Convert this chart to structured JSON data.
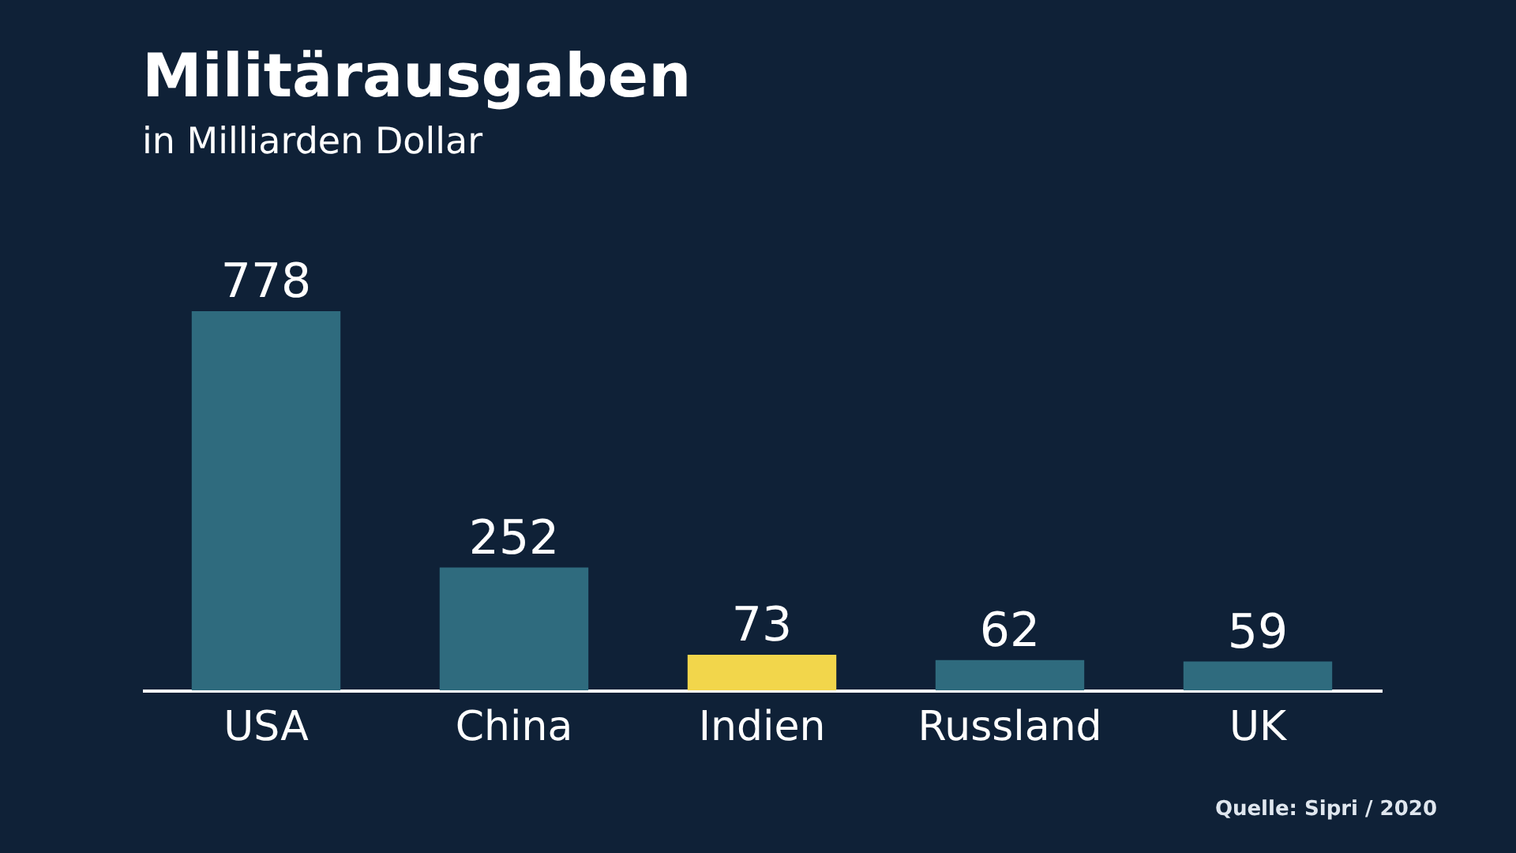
{
  "chart_data": {
    "type": "bar",
    "title": "Militärausgaben",
    "subtitle": "in Milliarden Dollar",
    "categories": [
      "USA",
      "China",
      "Indien",
      "Russland",
      "UK"
    ],
    "values": [
      778,
      252,
      73,
      62,
      59
    ],
    "colors": [
      "#2f6b7e",
      "#2f6b7e",
      "#f2d64b",
      "#2f6b7e",
      "#2f6b7e"
    ],
    "data_labels": true,
    "grid": false,
    "annotations": [
      "Quelle: Sipri / 2020"
    ]
  }
}
